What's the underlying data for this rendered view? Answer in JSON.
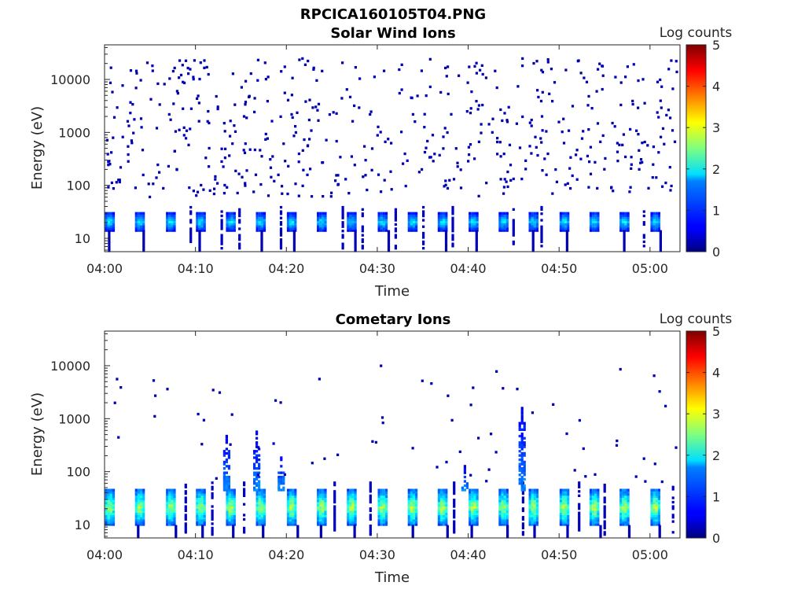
{
  "figure_title": "RPCICA160105T04.PNG",
  "chart_data": [
    {
      "type": "heatmap",
      "title": "Solar Wind Ions",
      "xlabel": "Time",
      "ylabel": "Energy (eV)",
      "colorbar_label": "Log counts",
      "x_ticks": [
        "04:00",
        "04:10",
        "04:20",
        "04:30",
        "04:40",
        "04:50",
        "05:00"
      ],
      "x_range_minutes": [
        0,
        63.3
      ],
      "y_ticks": [
        "10",
        "100",
        "1000",
        "10000"
      ],
      "y_scale": "log",
      "y_range_eV": [
        5.6,
        45000
      ],
      "colorbar_ticks": [
        "0",
        "1",
        "2",
        "3",
        "4",
        "5"
      ],
      "colorbar_range": [
        0,
        5
      ],
      "colormap": "jet",
      "sweep_starts_min": [
        0.0,
        3.3,
        6.7,
        10.0,
        13.3,
        16.6,
        20.0,
        23.3,
        26.6,
        30.0,
        33.3,
        36.6,
        40.0,
        43.3,
        46.6,
        50.0,
        53.3,
        56.6,
        60.0
      ],
      "low_energy_band_eV": [
        14,
        30
      ],
      "low_energy_peak_log_counts": 1.7,
      "sparse_background": {
        "energy_range_eV": [
          60,
          25000
        ],
        "log_counts": 0.2,
        "density": "high"
      }
    },
    {
      "type": "heatmap",
      "title": "Cometary Ions",
      "xlabel": "Time",
      "ylabel": "Energy (eV)",
      "colorbar_label": "Log counts",
      "x_ticks": [
        "04:00",
        "04:10",
        "04:20",
        "04:30",
        "04:40",
        "04:50",
        "05:00"
      ],
      "x_range_minutes": [
        0,
        63.3
      ],
      "y_ticks": [
        "10",
        "100",
        "1000",
        "10000"
      ],
      "y_scale": "log",
      "y_range_eV": [
        5.6,
        45000
      ],
      "colorbar_ticks": [
        "0",
        "1",
        "2",
        "3",
        "4",
        "5"
      ],
      "colorbar_range": [
        0,
        5
      ],
      "colormap": "jet",
      "sweep_starts_min": [
        0.0,
        3.3,
        6.7,
        10.0,
        13.3,
        16.6,
        20.0,
        23.3,
        26.6,
        30.0,
        33.3,
        36.6,
        40.0,
        43.3,
        46.6,
        50.0,
        53.3,
        56.6,
        60.0
      ],
      "low_energy_band_eV": [
        10,
        45
      ],
      "low_energy_peak_log_counts": 2.6,
      "bursts": [
        {
          "time_min": 13.3,
          "max_energy_eV": 500
        },
        {
          "time_min": 16.6,
          "max_energy_eV": 600
        },
        {
          "time_min": 19.3,
          "max_energy_eV": 200
        },
        {
          "time_min": 39.5,
          "max_energy_eV": 130
        },
        {
          "time_min": 45.8,
          "max_energy_eV": 1700
        }
      ],
      "sparse_background": {
        "energy_range_eV": [
          60,
          10000
        ],
        "log_counts": 0.2,
        "density": "low"
      }
    }
  ]
}
